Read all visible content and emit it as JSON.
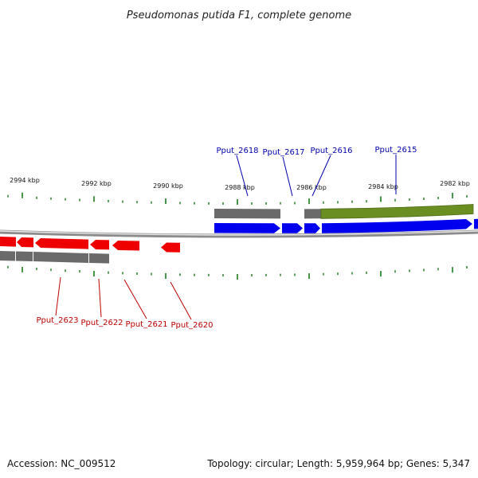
{
  "title": "Pseudomonas putida F1, complete genome",
  "footer": {
    "accession": "Accession: NC_009512",
    "summary": "Topology: circular; Length: 5,959,964 bp; Genes: 5,347"
  },
  "colors": {
    "forward_cds": "#0000ee",
    "reverse_cds": "#ee0000",
    "gene": "#6a6a6a",
    "rna": "#6b8e23",
    "tick": "#1a7a1a",
    "forward_label": "#0000aa",
    "reverse_label": "#bb0000",
    "backbone": "#8c8c8c"
  },
  "scale": {
    "unit": "kbp",
    "labels": [
      "2994 kbp",
      "2992 kbp",
      "2990 kbp",
      "2988 kbp",
      "2986 kbp",
      "2984 kbp",
      "2982 kbp"
    ]
  },
  "forward_labels": [
    "Pput_2618",
    "Pput_2617",
    "Pput_2616",
    "Pput_2615"
  ],
  "reverse_labels": [
    "Pput_2623",
    "Pput_2622",
    "Pput_2621",
    "Pput_2620"
  ]
}
